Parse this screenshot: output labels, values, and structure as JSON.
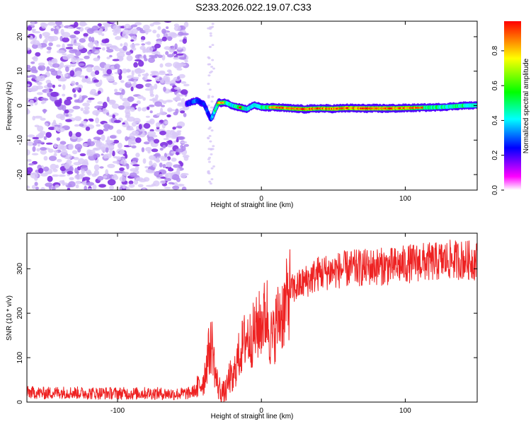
{
  "title": "S233.2026.022.19.07.C33",
  "colors": {
    "snr_line": "#ee2222",
    "frame": "#000000"
  },
  "chart_data": [
    {
      "type": "heatmap",
      "name": "spectrogram",
      "xlabel": "Height of straight line (km)",
      "ylabel": "Frequency (Hz)",
      "xlim": [
        -163,
        150
      ],
      "ylim": [
        -24.5,
        24.5
      ],
      "x_ticks": [
        -100,
        0,
        100
      ],
      "y_ticks": [
        -20,
        -10,
        0,
        10,
        20
      ],
      "colorbar": {
        "label": "Normalized spectral amplitude",
        "range": [
          0.0,
          0.97
        ],
        "ticks": [
          "0.0",
          "0.2",
          "0.4",
          "0.6",
          "0.8"
        ],
        "colormap": [
          "#ffffff",
          "#ff00ff",
          "#0000ff",
          "#00ffff",
          "#00ff00",
          "#ffff00",
          "#ff0000"
        ]
      },
      "noise_region_x": [
        -163,
        -52
      ],
      "signal_ridge": {
        "description": "narrow band near 0 Hz",
        "x": [
          -52,
          -45,
          -40,
          -35,
          -30,
          -25,
          -20,
          -15,
          -10,
          -5,
          0,
          10,
          20,
          30,
          40,
          50,
          60,
          70,
          80,
          90,
          100,
          110,
          120,
          130,
          140,
          150
        ],
        "freq": [
          0.5,
          1.5,
          0.5,
          -4.0,
          0.8,
          0.9,
          0.0,
          -0.5,
          -1.0,
          0.2,
          -0.5,
          -0.5,
          -0.8,
          -1.0,
          -0.8,
          -0.9,
          -0.7,
          -0.8,
          -0.8,
          -0.8,
          -0.7,
          -0.6,
          -0.5,
          -0.3,
          0.0,
          0.1
        ],
        "amplitude": [
          0.3,
          0.45,
          0.35,
          0.4,
          0.85,
          0.7,
          0.6,
          0.75,
          0.55,
          0.6,
          0.65,
          0.8,
          0.85,
          0.9,
          0.85,
          0.9,
          0.9,
          0.95,
          0.95,
          0.95,
          0.85,
          0.75,
          0.7,
          0.65,
          0.7,
          0.6
        ]
      }
    },
    {
      "type": "line",
      "name": "snr",
      "xlabel": "Height of straight line (km)",
      "ylabel": "SNR (10 * v/v)",
      "xlim": [
        -163,
        150
      ],
      "ylim": [
        0,
        380
      ],
      "x_ticks": [
        -100,
        0,
        100
      ],
      "y_ticks": [
        0,
        100,
        200,
        300
      ],
      "series": [
        {
          "name": "SNR",
          "x": [
            -163,
            -150,
            -140,
            -130,
            -120,
            -110,
            -100,
            -90,
            -80,
            -70,
            -60,
            -50,
            -45,
            -40,
            -38,
            -36,
            -34,
            -32,
            -30,
            -28,
            -26,
            -24,
            -22,
            -20,
            -18,
            -16,
            -14,
            -12,
            -10,
            -8,
            -6,
            -4,
            -2,
            0,
            2,
            4,
            6,
            8,
            10,
            12,
            14,
            16,
            18,
            20,
            25,
            30,
            35,
            40,
            50,
            60,
            70,
            80,
            90,
            100,
            110,
            120,
            130,
            140,
            150
          ],
          "y": [
            22,
            20,
            22,
            21,
            20,
            20,
            20,
            19,
            20,
            19,
            18,
            20,
            28,
            50,
            90,
            120,
            130,
            60,
            35,
            25,
            20,
            30,
            60,
            40,
            80,
            100,
            120,
            135,
            150,
            140,
            150,
            160,
            170,
            180,
            190,
            200,
            150,
            140,
            175,
            190,
            200,
            210,
            230,
            250,
            260,
            270,
            280,
            290,
            295,
            300,
            302,
            305,
            305,
            310,
            315,
            315,
            320,
            320,
            318
          ]
        }
      ]
    }
  ]
}
